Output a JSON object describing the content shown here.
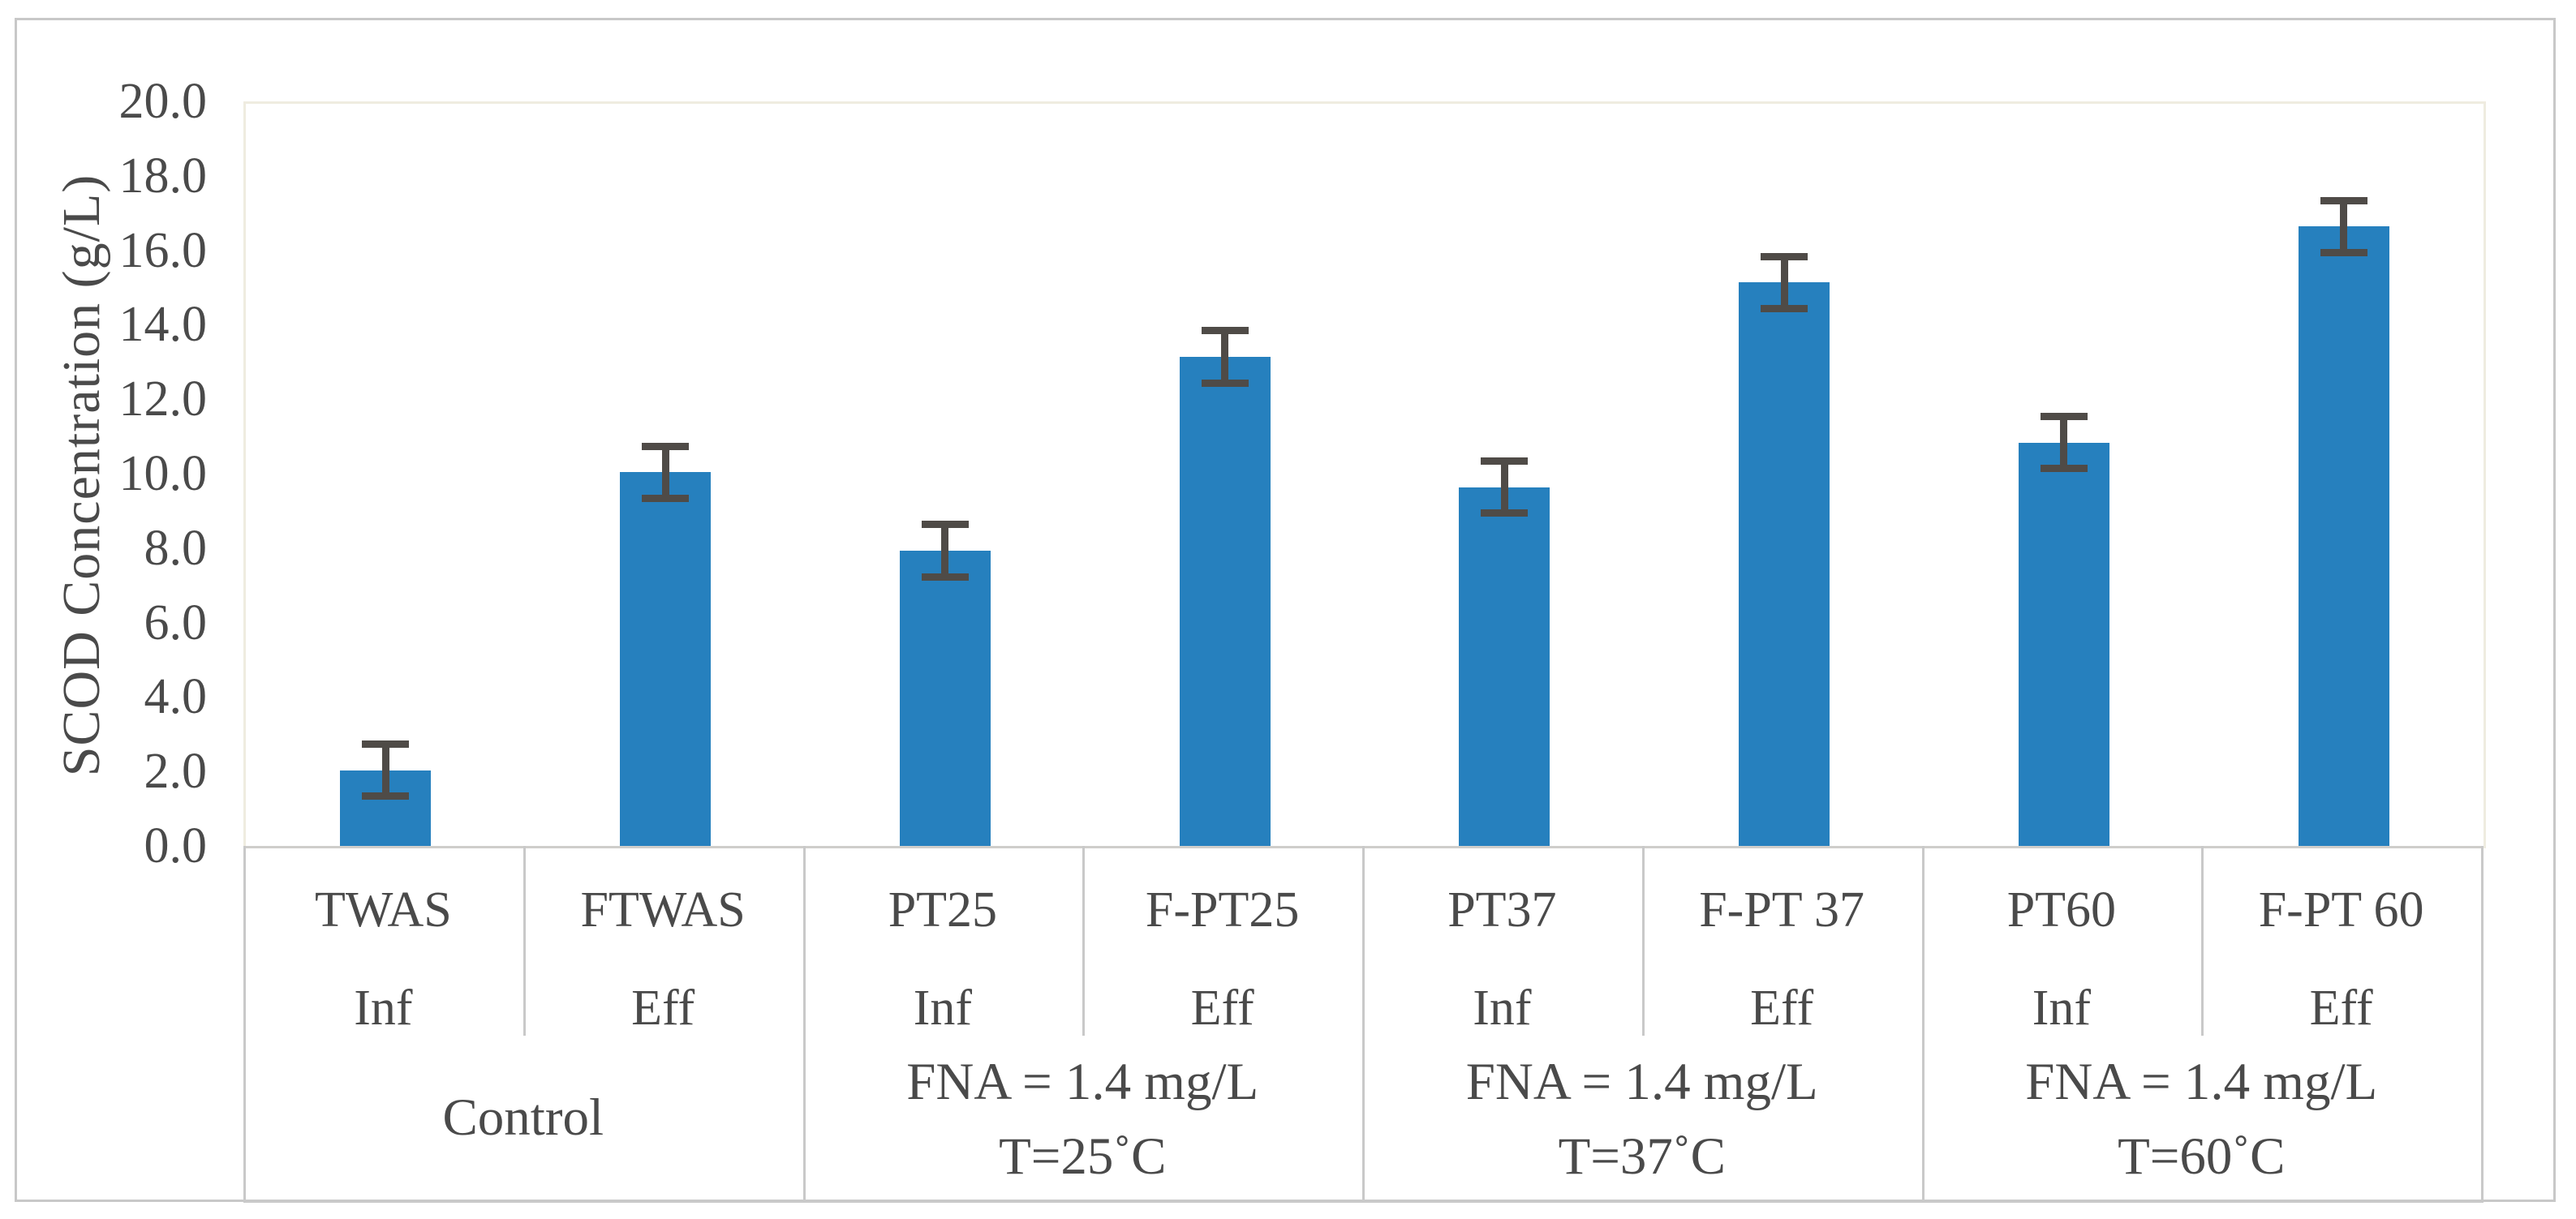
{
  "chart_data": {
    "type": "bar",
    "title": "",
    "xlabel": "",
    "ylabel": "SCOD Concentration  (g/L)",
    "ylim": [
      0,
      20
    ],
    "ytick_step": 2,
    "ytick_labels": [
      "0.0",
      "2.0",
      "4.0",
      "6.0",
      "8.0",
      "10.0",
      "12.0",
      "14.0",
      "16.0",
      "18.0",
      "20.0"
    ],
    "grid": "off",
    "legend": "none",
    "bar_color": "#2680be",
    "error_bar_color": "#4f4b47",
    "plot_border_color": "#efece0",
    "axis_line_color": "#cfcecb",
    "categories": [
      "TWAS",
      "FTWAS",
      "PT25",
      "F-PT25",
      "PT37",
      "F-PT 37",
      "PT60",
      "F-PT 60"
    ],
    "phases": [
      "Inf",
      "Eff",
      "Inf",
      "Eff",
      "Inf",
      "Eff",
      "Inf",
      "Eff"
    ],
    "values": [
      2.1,
      10.1,
      8.0,
      13.2,
      9.7,
      15.2,
      10.9,
      16.7
    ],
    "errors": [
      0.8,
      0.8,
      0.8,
      0.8,
      0.8,
      0.8,
      0.8,
      0.8
    ],
    "groups": [
      {
        "label_lines": [
          "Control"
        ],
        "bar_indexes": [
          0,
          1
        ]
      },
      {
        "label_lines": [
          "FNA = 1.4 mg/L",
          "T=25˚C"
        ],
        "bar_indexes": [
          2,
          3
        ]
      },
      {
        "label_lines": [
          "FNA = 1.4 mg/L",
          "T=37˚C"
        ],
        "bar_indexes": [
          4,
          5
        ]
      },
      {
        "label_lines": [
          "FNA = 1.4 mg/L",
          "T=60˚C"
        ],
        "bar_indexes": [
          6,
          7
        ]
      }
    ]
  }
}
